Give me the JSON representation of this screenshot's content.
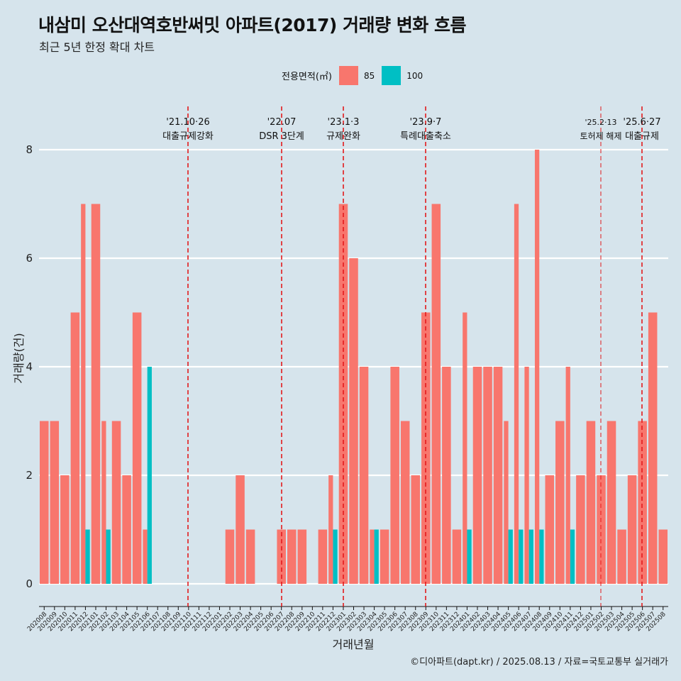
{
  "title": "내삼미 오산대역호반써밋 아파트(2017) 거래량 변화 흐름",
  "subtitle": "최근 5년 한정 확대 차트",
  "caption": "©디아파트(dapt.kr) / 2025.08.13 / 자료=국토교통부 실거래가",
  "legend": {
    "title": "전용면적(㎡)",
    "items": [
      {
        "label": "85",
        "color": "#f8766d"
      },
      {
        "label": "100",
        "color": "#00bfc4"
      }
    ]
  },
  "chart_data": {
    "type": "bar",
    "stacked": false,
    "xlabel": "거래년월",
    "ylabel": "거래량(건)",
    "ylim": [
      0,
      8
    ],
    "yticks": [
      0,
      2,
      4,
      6,
      8
    ],
    "categories": [
      "202008",
      "202009",
      "202010",
      "202011",
      "202012",
      "202101",
      "202102",
      "202103",
      "202104",
      "202105",
      "202106",
      "202107",
      "202108",
      "202109",
      "202110",
      "202111",
      "202112",
      "202201",
      "202202",
      "202203",
      "202204",
      "202205",
      "202206",
      "202207",
      "202208",
      "202209",
      "202210",
      "202211",
      "202212",
      "202301",
      "202302",
      "202303",
      "202304",
      "202305",
      "202306",
      "202307",
      "202308",
      "202309",
      "202310",
      "202311",
      "202312",
      "202401",
      "202402",
      "202403",
      "202404",
      "202405",
      "202406",
      "202407",
      "202408",
      "202409",
      "202410",
      "202411",
      "202412",
      "202501",
      "202502",
      "202503",
      "202504",
      "202505",
      "202506",
      "202507",
      "202508"
    ],
    "series": [
      {
        "name": "85",
        "color": "#f8766d",
        "values": [
          3,
          3,
          2,
          5,
          7,
          7,
          3,
          3,
          2,
          5,
          1,
          0,
          0,
          0,
          0,
          0,
          0,
          0,
          1,
          2,
          1,
          0,
          0,
          1,
          1,
          1,
          0,
          1,
          2,
          7,
          6,
          4,
          1,
          1,
          4,
          3,
          2,
          5,
          7,
          4,
          1,
          5,
          4,
          4,
          4,
          3,
          7,
          4,
          8,
          2,
          3,
          4,
          2,
          3,
          2,
          3,
          1,
          2,
          3,
          5,
          1
        ]
      },
      {
        "name": "100",
        "color": "#00bfc4",
        "values": [
          0,
          0,
          0,
          0,
          1,
          0,
          1,
          0,
          0,
          0,
          4,
          0,
          0,
          0,
          0,
          0,
          0,
          0,
          0,
          0,
          0,
          0,
          0,
          0,
          0,
          0,
          0,
          0,
          1,
          0,
          0,
          0,
          1,
          0,
          0,
          0,
          0,
          0,
          0,
          0,
          0,
          1,
          0,
          0,
          0,
          1,
          1,
          1,
          1,
          0,
          0,
          1,
          0,
          0,
          0,
          0,
          0,
          0,
          0,
          0,
          0
        ]
      }
    ],
    "events": [
      {
        "date": "'21.10·26",
        "label": "대출규제강화",
        "month": "202110",
        "offset": 0.0
      },
      {
        "date": "'22.07",
        "label": "DSR 3단계",
        "month": "202207",
        "offset": 0.0
      },
      {
        "date": "'23.1·3",
        "label": "규제완화",
        "month": "202301",
        "offset": 0.0
      },
      {
        "date": "'23.9·7",
        "label": "특례대출축소",
        "month": "202309",
        "offset": 0.0
      },
      {
        "date": "'25.2·13",
        "label": "토허제 해제",
        "month": "202502",
        "offset": 0.0
      },
      {
        "date": "'25.6·27",
        "label": "대출규제",
        "month": "202506",
        "offset": 0.0
      }
    ],
    "grid": true,
    "legend_position": "top"
  }
}
